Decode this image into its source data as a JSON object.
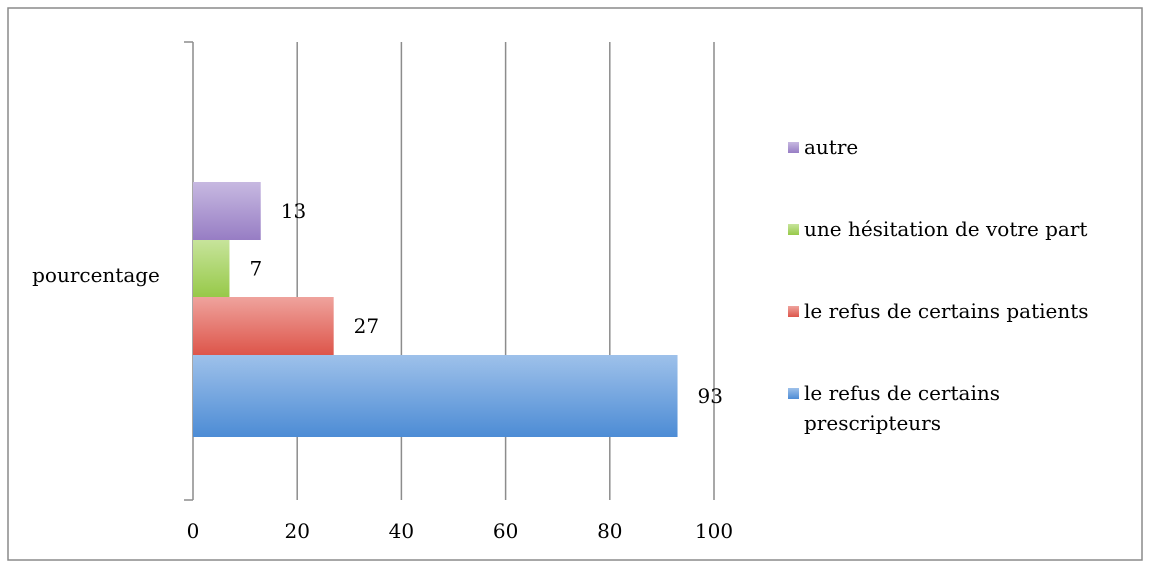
{
  "chart_data": {
    "type": "bar",
    "orientation": "horizontal",
    "categories": [
      "pourcentage"
    ],
    "series": [
      {
        "name": "le refus de certains prescripteurs",
        "value": 93,
        "color": "#4f8fd9"
      },
      {
        "name": "le refus de certains patients",
        "value": 27,
        "color": "#e2574c"
      },
      {
        "name": "une hésitation de votre part",
        "value": 7,
        "color": "#9acd4a"
      },
      {
        "name": "autre",
        "value": 13,
        "color": "#9a80c8"
      }
    ],
    "legend_order": [
      3,
      2,
      1,
      0
    ],
    "legend_lines": [
      [
        "autre"
      ],
      [
        "une hésitation de votre part"
      ],
      [
        "le refus de certains patients"
      ],
      [
        "le refus de certains",
        "prescripteurs"
      ]
    ],
    "xlim": [
      0,
      100
    ],
    "xticks": [
      0,
      20,
      40,
      60,
      80,
      100
    ],
    "grid": true,
    "legend_position": "right"
  }
}
